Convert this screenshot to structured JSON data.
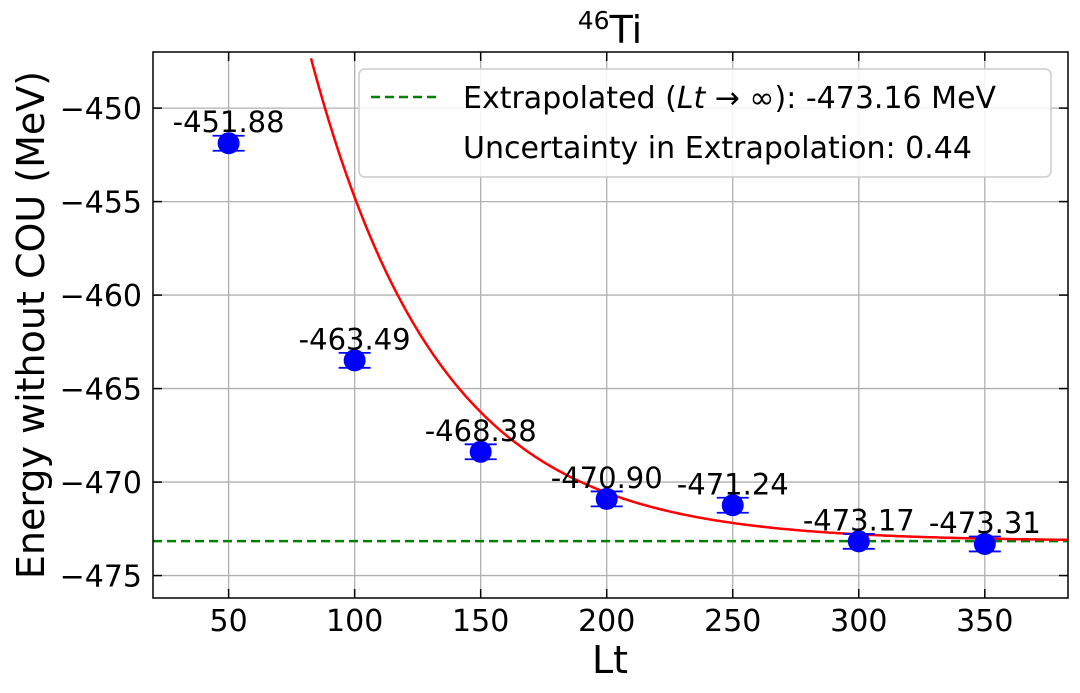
{
  "chart_data": {
    "type": "scatter",
    "title_main": "Ti",
    "title_super": "46",
    "xlabel": "Lt",
    "ylabel": "Energy without COU (MeV)",
    "xlim": [
      20,
      383
    ],
    "ylim": [
      -476.2,
      -447.0
    ],
    "xticks": [
      50,
      100,
      150,
      200,
      250,
      300,
      350
    ],
    "yticks": [
      -450,
      -455,
      -460,
      -465,
      -470,
      -475
    ],
    "ytick_labels": [
      "−450",
      "−455",
      "−460",
      "−465",
      "−470",
      "−475"
    ],
    "grid": true,
    "points": [
      {
        "x": 50,
        "y": -451.88,
        "err": 0.4,
        "label": "-451.88"
      },
      {
        "x": 100,
        "y": -463.49,
        "err": 0.4,
        "label": "-463.49"
      },
      {
        "x": 150,
        "y": -468.38,
        "err": 0.4,
        "label": "-468.38"
      },
      {
        "x": 200,
        "y": -470.9,
        "err": 0.4,
        "label": "-470.90"
      },
      {
        "x": 250,
        "y": -471.24,
        "err": 0.4,
        "label": "-471.24"
      },
      {
        "x": 300,
        "y": -473.17,
        "err": 0.4,
        "label": "-473.17"
      },
      {
        "x": 350,
        "y": -473.31,
        "err": 0.4,
        "label": "-473.31"
      }
    ],
    "fit": {
      "a": -473.16,
      "b": 49.0,
      "k": 0.0196,
      "color": "#ff0000"
    },
    "extrapolated_value": -473.16,
    "point_color": "#0000ff",
    "line_color": "#008000",
    "legend": {
      "placement": "top-right",
      "entry1_prefix": "Extrapolated (",
      "entry1_math": "Lt",
      "entry1_arrow": " → ∞",
      "entry1_suffix": "): -473.16 MeV",
      "entry2": "Uncertainty in Extrapolation: 0.44"
    }
  }
}
